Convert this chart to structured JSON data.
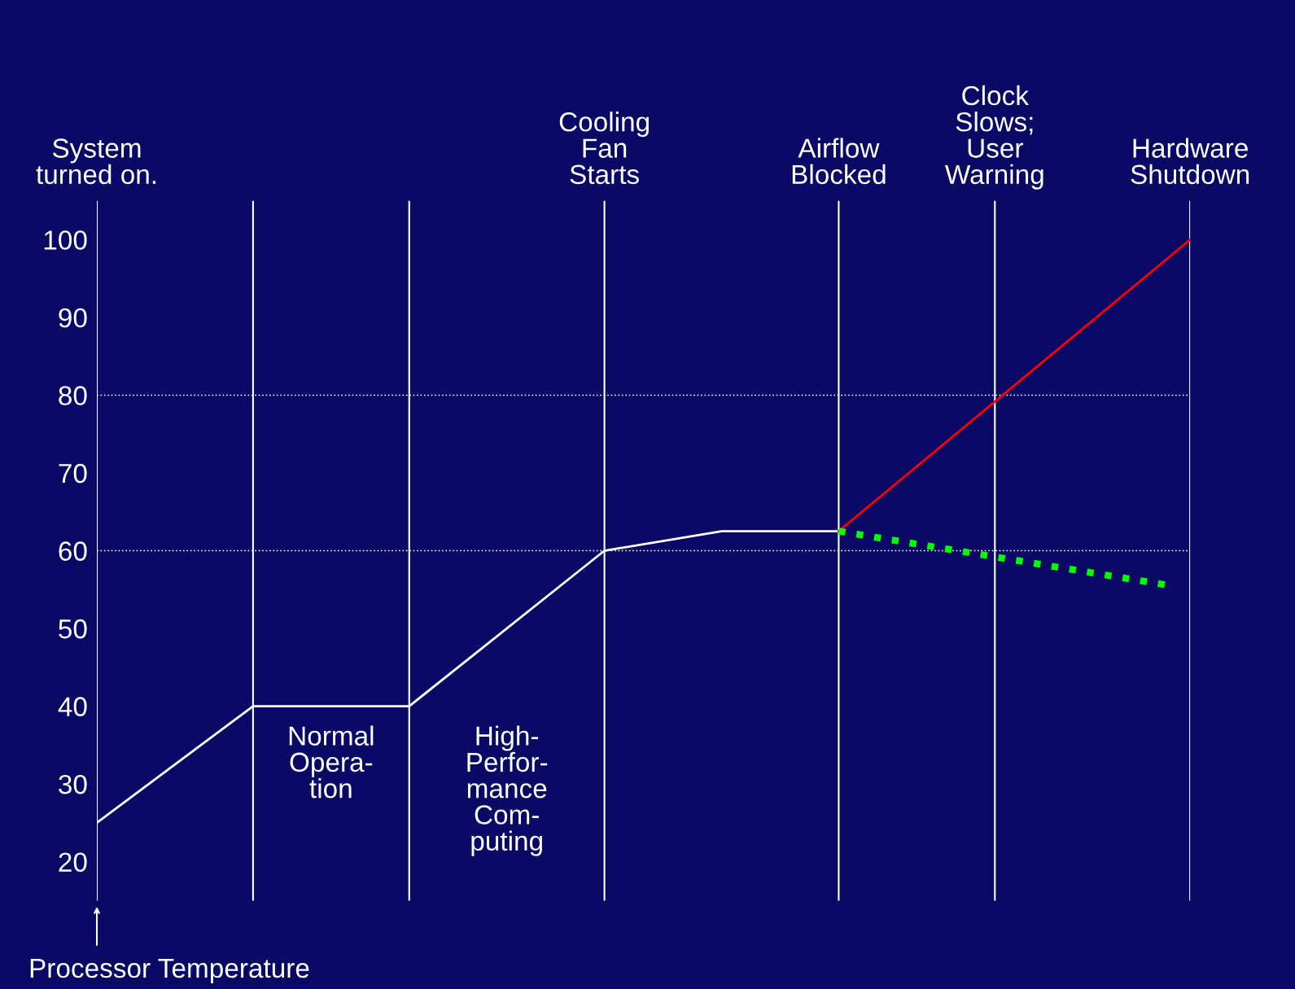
{
  "chart_data": {
    "type": "line",
    "ylabel": "Processor Temperature",
    "categories": [
      "System\nturned on.",
      null,
      null,
      null,
      null,
      null,
      null,
      null,
      null,
      null,
      null,
      null,
      null,
      null,
      null,
      null,
      null,
      null,
      null,
      null,
      null,
      null,
      null,
      null,
      null,
      null,
      "Cooling\nFan\nStarts",
      null,
      null,
      null,
      null,
      null,
      null,
      null,
      null,
      null,
      null,
      null,
      "Airflow\nBlocked",
      null,
      null,
      null,
      null,
      null,
      null,
      null,
      "Clock\nSlows;\nUser\nWarning",
      null,
      null,
      null,
      null,
      null,
      null,
      null,
      null,
      null,
      "Hardware\nShutdown"
    ],
    "series": [
      {
        "color": "#ffffff",
        "line_style": "solid",
        "values": [
          25,
          null,
          null,
          null,
          null,
          null,
          null,
          null,
          40,
          null,
          null,
          null,
          null,
          null,
          null,
          null,
          40,
          null,
          null,
          null,
          null,
          null,
          null,
          null,
          null,
          null,
          60,
          null,
          null,
          null,
          null,
          null,
          62.5,
          null,
          null,
          null,
          null,
          null,
          62.5,
          null,
          null,
          null,
          null,
          null,
          null,
          null,
          null,
          null,
          null,
          null,
          null,
          null,
          null,
          null,
          null,
          null,
          null
        ]
      },
      {
        "color": "#ff0000",
        "line_style": "solid",
        "values": [
          null,
          null,
          null,
          null,
          null,
          null,
          null,
          null,
          null,
          null,
          null,
          null,
          null,
          null,
          null,
          null,
          null,
          null,
          null,
          null,
          null,
          null,
          null,
          null,
          null,
          null,
          null,
          null,
          null,
          null,
          null,
          null,
          null,
          null,
          null,
          null,
          null,
          null,
          62.5,
          null,
          null,
          null,
          null,
          null,
          null,
          null,
          null,
          null,
          null,
          null,
          null,
          null,
          null,
          null,
          null,
          null,
          100
        ]
      },
      {
        "color": "#00ff00",
        "line_style": "dotted",
        "values": [
          null,
          null,
          null,
          null,
          null,
          null,
          null,
          null,
          null,
          null,
          null,
          null,
          null,
          null,
          null,
          null,
          null,
          null,
          null,
          null,
          null,
          null,
          null,
          null,
          null,
          null,
          null,
          null,
          null,
          null,
          null,
          null,
          null,
          null,
          null,
          null,
          null,
          null,
          62.5,
          null,
          null,
          null,
          null,
          null,
          null,
          null,
          null,
          null,
          null,
          null,
          null,
          null,
          null,
          null,
          null,
          55.5,
          null
        ]
      }
    ],
    "ylim": [
      15,
      105
    ],
    "yticks": [
      20,
      30,
      40,
      50,
      60,
      70,
      80,
      90,
      100
    ],
    "grid": "x",
    "ref_lines": [
      {
        "axis": "y",
        "value": 60,
        "label": null,
        "color": "#ffffff",
        "line_style": "dotted"
      },
      {
        "axis": "y",
        "value": 80,
        "label": null,
        "color": "#ffffff",
        "line_style": "dotted"
      }
    ],
    "annotations": [
      "Normal\nOpera-\ntion",
      "High-\nPerfor-\nmance\nCom-\nputing"
    ]
  }
}
